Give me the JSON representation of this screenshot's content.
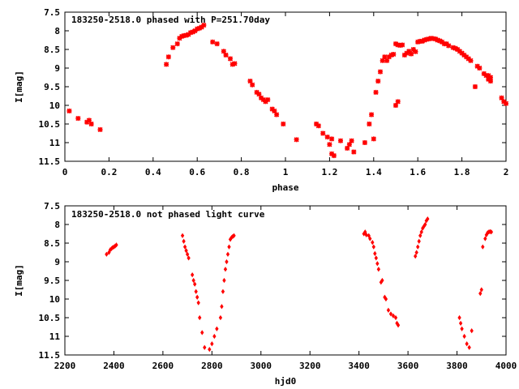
{
  "colors": {
    "points": "#ff0000",
    "axes": "#000000",
    "background": "#ffffff"
  },
  "chart_data": [
    {
      "type": "scatter",
      "title": "183250-2518.0 phased with P=251.70day",
      "xlabel": "phase",
      "ylabel": "I[mag]",
      "xlim": [
        0,
        2
      ],
      "ylim": [
        7.5,
        11.5
      ],
      "y_inverted": true,
      "xticks": [
        "0",
        "0.2",
        "0.4",
        "0.6",
        "0.8",
        "1",
        "1.2",
        "1.4",
        "1.6",
        "1.8",
        "2"
      ],
      "yticks": [
        "7.5",
        "8",
        "8.5",
        "9",
        "9.5",
        "10",
        "10.5",
        "11",
        "11.5"
      ],
      "marker": "cross",
      "series": [
        {
          "x": [
            0.02,
            0.06,
            0.1,
            0.11,
            0.12,
            0.16,
            0.46,
            0.47,
            0.49,
            0.51,
            0.52,
            0.53,
            0.54,
            0.55,
            0.56,
            0.57,
            0.58,
            0.59,
            0.6,
            0.61,
            0.62,
            0.63,
            0.67,
            0.69,
            0.72,
            0.73,
            0.75,
            0.76,
            0.77,
            0.84,
            0.85,
            0.87,
            0.88,
            0.89,
            0.9,
            0.91,
            0.92,
            0.94,
            0.95,
            0.96,
            0.99,
            1.05,
            1.14,
            1.15,
            1.17,
            1.19,
            1.2,
            1.21,
            1.21,
            1.22,
            1.25,
            1.28,
            1.29,
            1.3,
            1.31,
            1.36,
            1.38,
            1.39,
            1.4,
            1.41,
            1.42,
            1.43,
            1.44,
            1.45,
            1.46,
            1.47,
            1.48,
            1.49,
            1.5,
            1.5,
            1.51,
            1.51,
            1.52,
            1.53,
            1.54,
            1.55,
            1.56,
            1.57,
            1.58,
            1.59,
            1.6,
            1.61,
            1.62,
            1.63,
            1.64,
            1.65,
            1.66,
            1.67,
            1.68,
            1.69,
            1.7,
            1.71,
            1.72,
            1.73,
            1.74,
            1.76,
            1.77,
            1.78,
            1.79,
            1.8,
            1.81,
            1.82,
            1.83,
            1.84,
            1.86,
            1.87,
            1.88,
            1.9,
            1.91,
            1.92,
            1.92,
            1.93,
            1.93,
            1.98,
            1.99,
            2.0
          ],
          "y": [
            10.15,
            10.35,
            10.45,
            10.4,
            10.5,
            10.65,
            8.9,
            8.7,
            8.45,
            8.35,
            8.2,
            8.15,
            8.13,
            8.12,
            8.1,
            8.05,
            8.03,
            8.0,
            7.95,
            7.93,
            7.9,
            7.85,
            8.3,
            8.35,
            8.55,
            8.65,
            8.75,
            8.9,
            8.88,
            9.35,
            9.45,
            9.65,
            9.7,
            9.8,
            9.85,
            9.9,
            9.85,
            10.1,
            10.15,
            10.25,
            10.5,
            10.92,
            10.5,
            10.55,
            10.75,
            10.85,
            11.05,
            10.9,
            11.3,
            11.35,
            10.95,
            11.15,
            11.05,
            10.95,
            11.25,
            11.0,
            10.5,
            10.25,
            10.9,
            9.65,
            9.35,
            9.1,
            8.8,
            8.7,
            8.8,
            8.7,
            8.65,
            8.63,
            8.35,
            10.0,
            9.9,
            8.38,
            8.39,
            8.38,
            8.65,
            8.6,
            8.55,
            8.62,
            8.5,
            8.56,
            8.3,
            8.28,
            8.28,
            8.25,
            8.23,
            8.22,
            8.2,
            8.21,
            8.22,
            8.25,
            8.27,
            8.3,
            8.35,
            8.35,
            8.4,
            8.45,
            8.47,
            8.5,
            8.55,
            8.6,
            8.65,
            8.7,
            8.75,
            8.8,
            9.5,
            8.95,
            9.0,
            9.15,
            9.2,
            9.2,
            9.3,
            9.25,
            9.35,
            9.8,
            9.9,
            9.95
          ]
        }
      ]
    },
    {
      "type": "scatter",
      "title": "183250-2518.0 not phased light curve",
      "xlabel": "hjd0",
      "ylabel": "I[mag]",
      "xlim": [
        2200,
        4000
      ],
      "ylim": [
        7.5,
        11.5
      ],
      "y_inverted": true,
      "xticks": [
        "2200",
        "2400",
        "2600",
        "2800",
        "3000",
        "3200",
        "3400",
        "3600",
        "3800",
        "4000"
      ],
      "yticks": [
        "7.5",
        "8",
        "8.5",
        "9",
        "9.5",
        "10",
        "10.5",
        "11",
        "11.5"
      ],
      "marker": "diamond",
      "series": [
        {
          "x": [
            2370,
            2380,
            2385,
            2390,
            2395,
            2400,
            2405,
            2410,
            2680,
            2685,
            2690,
            2695,
            2700,
            2705,
            2720,
            2725,
            2730,
            2735,
            2740,
            2745,
            2750,
            2760,
            2770,
            2790,
            2800,
            2810,
            2820,
            2835,
            2840,
            2845,
            2850,
            2855,
            2860,
            2865,
            2870,
            2875,
            2880,
            2885,
            2890,
            3420,
            3425,
            3430,
            3440,
            3445,
            3455,
            3460,
            3465,
            3470,
            3475,
            3480,
            3490,
            3495,
            3505,
            3510,
            3520,
            3530,
            3540,
            3550,
            3555,
            3560,
            3630,
            3635,
            3640,
            3645,
            3650,
            3655,
            3660,
            3665,
            3670,
            3675,
            3680,
            3810,
            3815,
            3820,
            3830,
            3840,
            3850,
            3860,
            3895,
            3900,
            3905,
            3915,
            3920,
            3925,
            3930,
            3935,
            3940
          ],
          "y": [
            8.8,
            8.75,
            8.68,
            8.65,
            8.62,
            8.6,
            8.58,
            8.55,
            8.3,
            8.45,
            8.6,
            8.7,
            8.8,
            8.9,
            9.35,
            9.5,
            9.6,
            9.8,
            9.95,
            10.1,
            10.5,
            10.9,
            11.3,
            11.35,
            11.2,
            11.0,
            10.8,
            10.5,
            10.2,
            9.8,
            9.5,
            9.2,
            9.0,
            8.8,
            8.6,
            8.4,
            8.35,
            8.32,
            8.3,
            8.25,
            8.2,
            8.28,
            8.3,
            8.38,
            8.48,
            8.6,
            8.78,
            8.9,
            9.05,
            9.2,
            9.55,
            9.5,
            9.95,
            10.0,
            10.3,
            10.4,
            10.45,
            10.5,
            10.65,
            10.7,
            8.85,
            8.75,
            8.6,
            8.45,
            8.3,
            8.2,
            8.1,
            8.05,
            8.0,
            7.9,
            7.85,
            10.5,
            10.65,
            10.8,
            11.0,
            11.2,
            11.3,
            10.85,
            9.85,
            9.75,
            8.6,
            8.38,
            8.28,
            8.22,
            8.2,
            8.19,
            8.2
          ]
        }
      ]
    }
  ]
}
